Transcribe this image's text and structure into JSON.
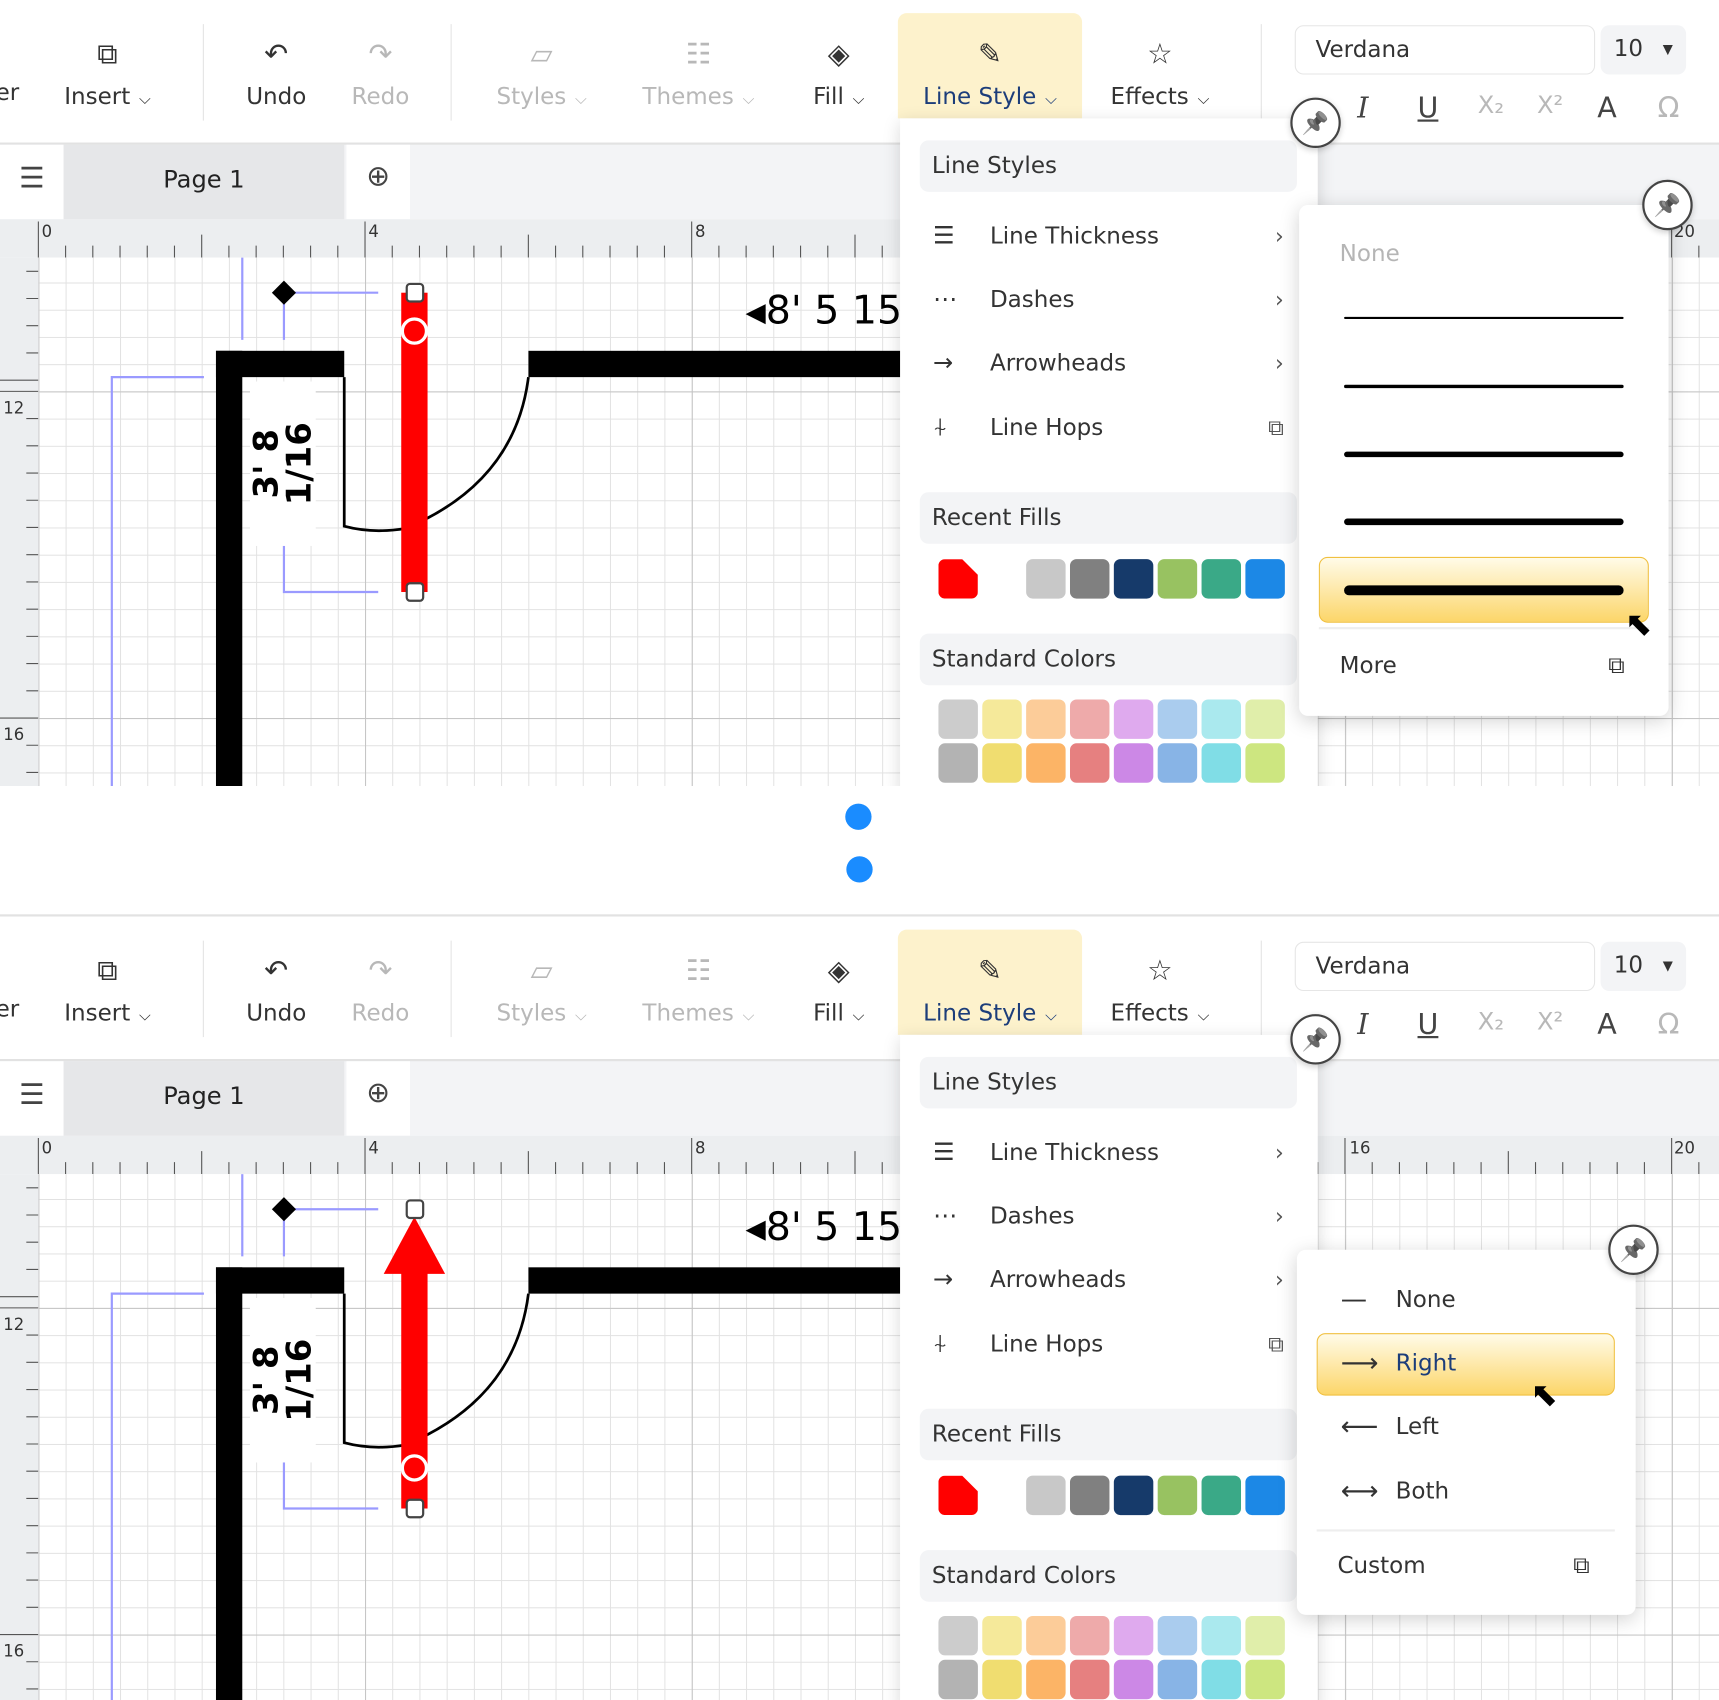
{
  "colors": {
    "accent_bg": "#fdf2cc",
    "highlight": "#fcd66a",
    "selection_red": "#ff0000",
    "guide_blue": "#9a9aff",
    "dot_blue": "#1a8cff"
  },
  "toolbar": {
    "cut_label": "er",
    "items": [
      {
        "label": "Insert",
        "icon": "insert-icon",
        "dropdown": true,
        "disabled": false
      },
      {
        "label": "Undo",
        "icon": "undo-icon",
        "dropdown": false,
        "disabled": false
      },
      {
        "label": "Redo",
        "icon": "redo-icon",
        "dropdown": false,
        "disabled": true
      },
      {
        "label": "Styles",
        "icon": "styles-icon",
        "dropdown": true,
        "disabled": true
      },
      {
        "label": "Themes",
        "icon": "themes-icon",
        "dropdown": true,
        "disabled": true
      },
      {
        "label": "Fill",
        "icon": "fill-bucket-icon",
        "dropdown": true,
        "disabled": false
      },
      {
        "label": "Line Style",
        "icon": "pen-icon",
        "dropdown": true,
        "disabled": false,
        "active": true
      },
      {
        "label": "Effects",
        "icon": "star-icon",
        "dropdown": true,
        "disabled": false
      }
    ],
    "font_family": "Verdana",
    "font_size": "10",
    "format_icons": [
      "italic-icon",
      "underline-icon",
      "subscript-icon",
      "superscript-icon",
      "font-color-icon",
      "symbol-icon"
    ]
  },
  "tabs": {
    "page_label": "Page 1"
  },
  "ruler": {
    "top_labels_1": [
      "0",
      "4",
      "8",
      "20"
    ],
    "top_labels_2": [
      "0",
      "4",
      "8",
      "16",
      "20"
    ],
    "left_labels": [
      "12",
      "16"
    ]
  },
  "canvas": {
    "dimension_vertical": "3' 8 1/16",
    "dimension_horizontal": "8' 5 15"
  },
  "menu": {
    "line_styles_header": "Line Styles",
    "items": [
      {
        "label": "Line Thickness",
        "icon": "line-thickness-icon"
      },
      {
        "label": "Dashes",
        "icon": "dashes-icon"
      },
      {
        "label": "Arrowheads",
        "icon": "arrowhead-icon"
      },
      {
        "label": "Line Hops",
        "icon": "line-hops-icon"
      }
    ],
    "recent_fills_header": "Recent Fills",
    "recent_fills": [
      "#ff0000",
      "#c8c8c8",
      "#808080",
      "#163a6a",
      "#98c261",
      "#3aa987",
      "#1c88e6"
    ],
    "standard_colors_header": "Standard Colors",
    "standard_colors": [
      "#cccccc",
      "#f5e99a",
      "#fccc99",
      "#eeaaaa",
      "#dfaaee",
      "#aaccee",
      "#aae9ee",
      "#e0eeaa",
      "#b3b3b3",
      "#f0dd70",
      "#fcb466",
      "#e68080",
      "#cc88e6",
      "#88b4e6",
      "#80dde6",
      "#cde680"
    ]
  },
  "thickness_submenu": {
    "none_label": "None",
    "thickness_levels": [
      1,
      2,
      3,
      4,
      5
    ],
    "selected_level": 5,
    "more_label": "More"
  },
  "arrowheads_submenu": {
    "items": [
      {
        "label": "None",
        "icon": "no-arrow-icon"
      },
      {
        "label": "Right",
        "icon": "arrow-right-icon",
        "selected": true
      },
      {
        "label": "Left",
        "icon": "arrow-left-icon"
      },
      {
        "label": "Both",
        "icon": "arrow-both-icon"
      }
    ],
    "custom_label": "Custom"
  }
}
